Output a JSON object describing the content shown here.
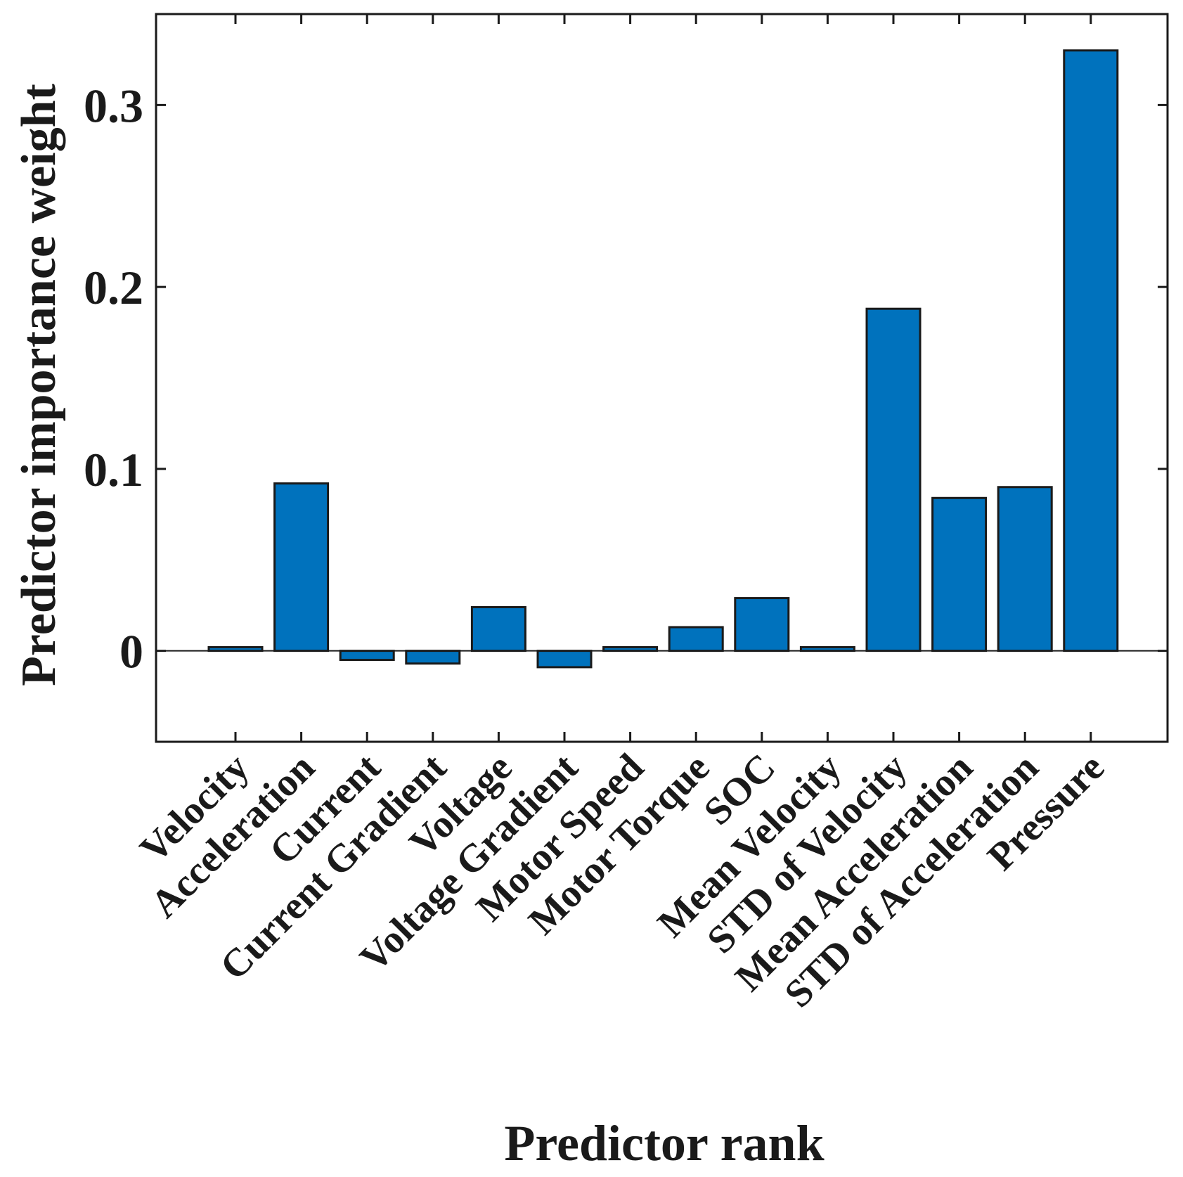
{
  "chart_data": {
    "type": "bar",
    "title": "",
    "xlabel": "Predictor rank",
    "ylabel": "Predictor importance weight",
    "categories": [
      "Velocity",
      "Acceleration",
      "Current",
      "Current Gradient",
      "Voltage",
      "Voltage Gradient",
      "Motor Speed",
      "Motor Torque",
      "SOC",
      "Mean Velocity",
      "STD of Velocity",
      "Mean Acceleration",
      "STD of Acceleration",
      "Pressure"
    ],
    "values": [
      0.002,
      0.092,
      -0.005,
      -0.007,
      0.024,
      -0.009,
      0.002,
      0.013,
      0.029,
      0.002,
      0.188,
      0.084,
      0.09,
      0.33
    ],
    "ylim": [
      -0.05,
      0.35
    ],
    "yticks": [
      0,
      0.1,
      0.2,
      0.3
    ],
    "ytick_labels": [
      "0",
      "0.1",
      "0.2",
      "0.3"
    ],
    "grid": false,
    "bar_color": "#0072bd",
    "edge_color": "#1a1a1a"
  }
}
